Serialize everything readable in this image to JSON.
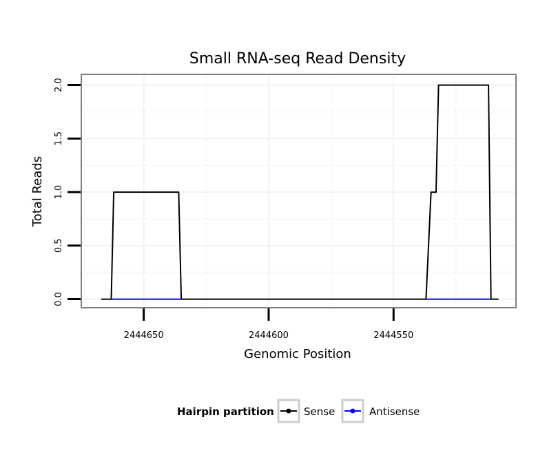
{
  "chart_data": {
    "type": "line",
    "title": "Small RNA-seq Read Density",
    "xlabel": "Genomic Position",
    "ylabel": "Total Reads",
    "x_reversed": true,
    "xlim": [
      2444675,
      2444501
    ],
    "ylim": [
      -0.08,
      2.1
    ],
    "x_ticks": [
      2444650,
      2444600,
      2444550
    ],
    "x_tick_labels": [
      "2444650",
      "2444600",
      "2444550"
    ],
    "y_ticks": [
      0.0,
      0.5,
      1.0,
      1.5,
      2.0
    ],
    "y_tick_labels": [
      "0.0",
      "0.5",
      "1.0",
      "1.5",
      "2.0"
    ],
    "grid": true,
    "legend_position": "bottom",
    "legend_title": "Hairpin partition",
    "series": [
      {
        "name": "Sense",
        "color": "#000000",
        "points": [
          [
            2444667,
            0
          ],
          [
            2444663,
            0
          ],
          [
            2444662,
            1
          ],
          [
            2444636,
            1
          ],
          [
            2444635,
            0
          ],
          [
            2444537,
            0
          ],
          [
            2444535,
            1
          ],
          [
            2444533,
            1
          ],
          [
            2444532,
            2
          ],
          [
            2444512,
            2
          ],
          [
            2444511,
            0
          ],
          [
            2444508,
            0
          ]
        ]
      },
      {
        "name": "Antisense",
        "color": "#0000ff",
        "points": [
          [
            2444663,
            0
          ],
          [
            2444635,
            0
          ]
        ],
        "points2": [
          [
            2444537,
            0
          ],
          [
            2444511,
            0
          ]
        ]
      }
    ]
  }
}
